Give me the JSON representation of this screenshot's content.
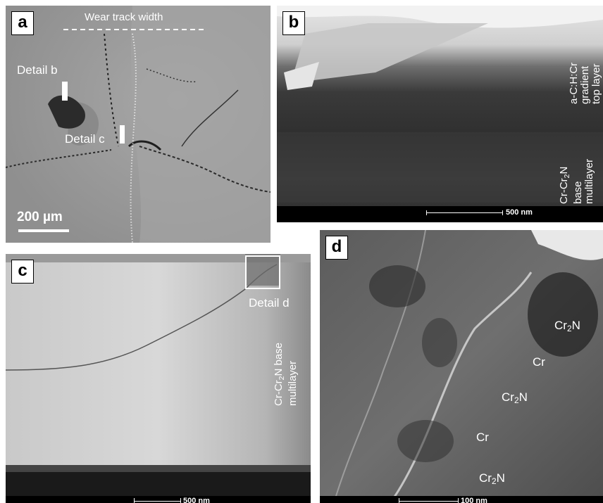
{
  "panels": {
    "a": {
      "label": "a",
      "wear_track": "Wear track width",
      "detail_b": "Detail b",
      "detail_c": "Detail c",
      "scale": "200 µm"
    },
    "b": {
      "label": "b",
      "top_layer": [
        "a-C:H:Cr",
        "gradient",
        "top layer"
      ],
      "base_prefix": "Cr-Cr",
      "base_sub": "2",
      "base_suffix": "N",
      "base_lines": [
        "base",
        "multilayer"
      ],
      "scale": "500 nm"
    },
    "c": {
      "label": "c",
      "detail_d": "Detail d",
      "base_prefix": "Cr-Cr",
      "base_sub": "2",
      "base_suffix": "N base",
      "base_line2": "multilayer",
      "scale": "500 nm"
    },
    "d": {
      "label": "d",
      "phases": [
        "Cr",
        "Cr",
        "N"
      ],
      "cr": "Cr",
      "n": "N",
      "sub": "2",
      "scale": "100 nm"
    }
  },
  "colors": {
    "sem_bg": "#999999",
    "tem_dark": "#2a2a2a",
    "tem_light": "#d9d9d9",
    "label_bg": "#ffffff"
  }
}
